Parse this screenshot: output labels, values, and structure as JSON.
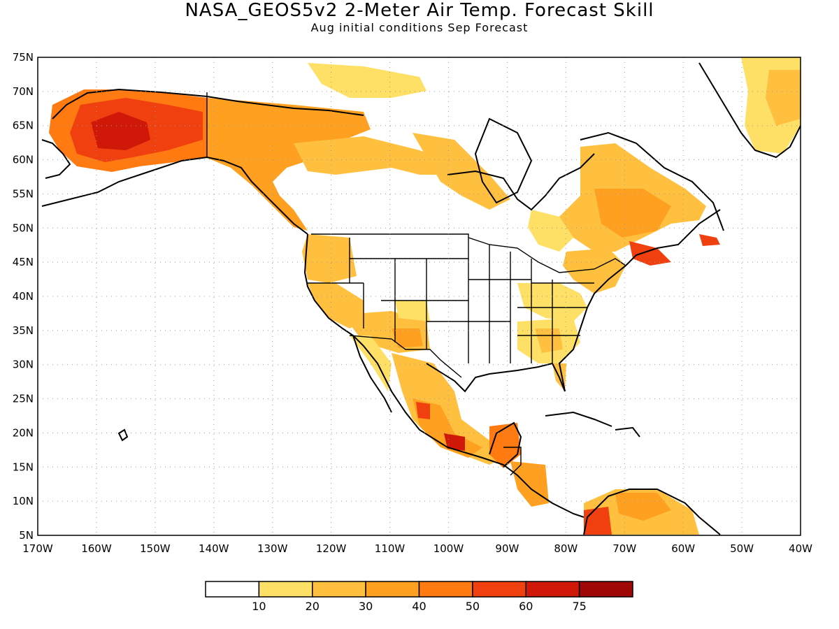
{
  "title": "NASA_GEOS5v2 2-Meter Air Temp. Forecast Skill",
  "subtitle": "Aug initial conditions  Sep Forecast",
  "map": {
    "lon_range": [
      -170,
      -40
    ],
    "lat_range": [
      5,
      75
    ],
    "lat_ticks": [
      "75N",
      "70N",
      "65N",
      "60N",
      "55N",
      "50N",
      "45N",
      "40N",
      "35N",
      "30N",
      "25N",
      "20N",
      "15N",
      "10N",
      "5N"
    ],
    "lon_ticks": [
      "170W",
      "160W",
      "150W",
      "140W",
      "130W",
      "120W",
      "110W",
      "100W",
      "90W",
      "80W",
      "70W",
      "60W",
      "50W",
      "40W"
    ],
    "grid": "dotted",
    "background": "#ffffff",
    "coast_color": "#000000"
  },
  "colorbar": {
    "colors": [
      "#ffffff",
      "#ffe066",
      "#ffc040",
      "#ffa020",
      "#ff7a10",
      "#f04010",
      "#d01808",
      "#a00808"
    ],
    "labels": [
      "10",
      "20",
      "30",
      "40",
      "50",
      "60",
      "75"
    ]
  }
}
